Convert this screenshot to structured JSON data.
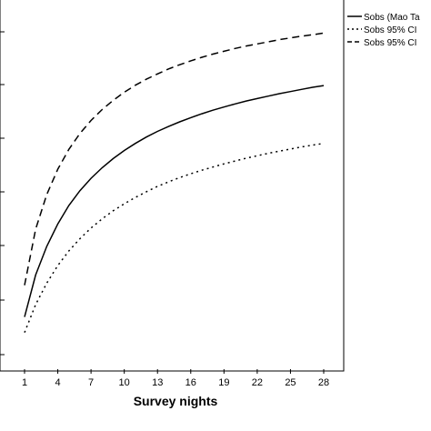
{
  "chart_data": {
    "type": "line",
    "xlabel": "Survey nights",
    "ylabel": "",
    "xlim": [
      0,
      30
    ],
    "ylim": [
      0,
      1
    ],
    "x_ticks": [
      1,
      4,
      7,
      10,
      13,
      16,
      19,
      22,
      25,
      28
    ],
    "grid": false,
    "legend_position": "top-right",
    "x": [
      1,
      2,
      3,
      4,
      5,
      6,
      7,
      8,
      9,
      10,
      11,
      12,
      13,
      14,
      15,
      16,
      17,
      18,
      19,
      20,
      21,
      22,
      23,
      24,
      25,
      26,
      27,
      28
    ],
    "series": [
      {
        "name": "Sobs (Mao Ta",
        "style": "solid",
        "color": "#000000",
        "values": [
          0.117,
          0.236,
          0.317,
          0.381,
          0.433,
          0.475,
          0.51,
          0.54,
          0.566,
          0.589,
          0.609,
          0.627,
          0.643,
          0.657,
          0.67,
          0.682,
          0.693,
          0.703,
          0.712,
          0.721,
          0.729,
          0.736,
          0.743,
          0.75,
          0.756,
          0.762,
          0.768,
          0.773
        ]
      },
      {
        "name": "Sobs 95% CI",
        "style": "dotted",
        "color": "#000000",
        "values": [
          0.073,
          0.152,
          0.213,
          0.263,
          0.304,
          0.339,
          0.369,
          0.395,
          0.418,
          0.438,
          0.456,
          0.472,
          0.487,
          0.5,
          0.512,
          0.523,
          0.533,
          0.542,
          0.551,
          0.559,
          0.567,
          0.574,
          0.581,
          0.587,
          0.593,
          0.599,
          0.604,
          0.609
        ]
      },
      {
        "name": "Sobs 95% CI",
        "style": "dashed",
        "color": "#000000",
        "values": [
          0.207,
          0.366,
          0.464,
          0.536,
          0.592,
          0.637,
          0.674,
          0.705,
          0.731,
          0.754,
          0.774,
          0.791,
          0.806,
          0.82,
          0.832,
          0.843,
          0.853,
          0.862,
          0.87,
          0.878,
          0.885,
          0.891,
          0.897,
          0.903,
          0.908,
          0.913,
          0.917,
          0.922
        ]
      }
    ]
  }
}
